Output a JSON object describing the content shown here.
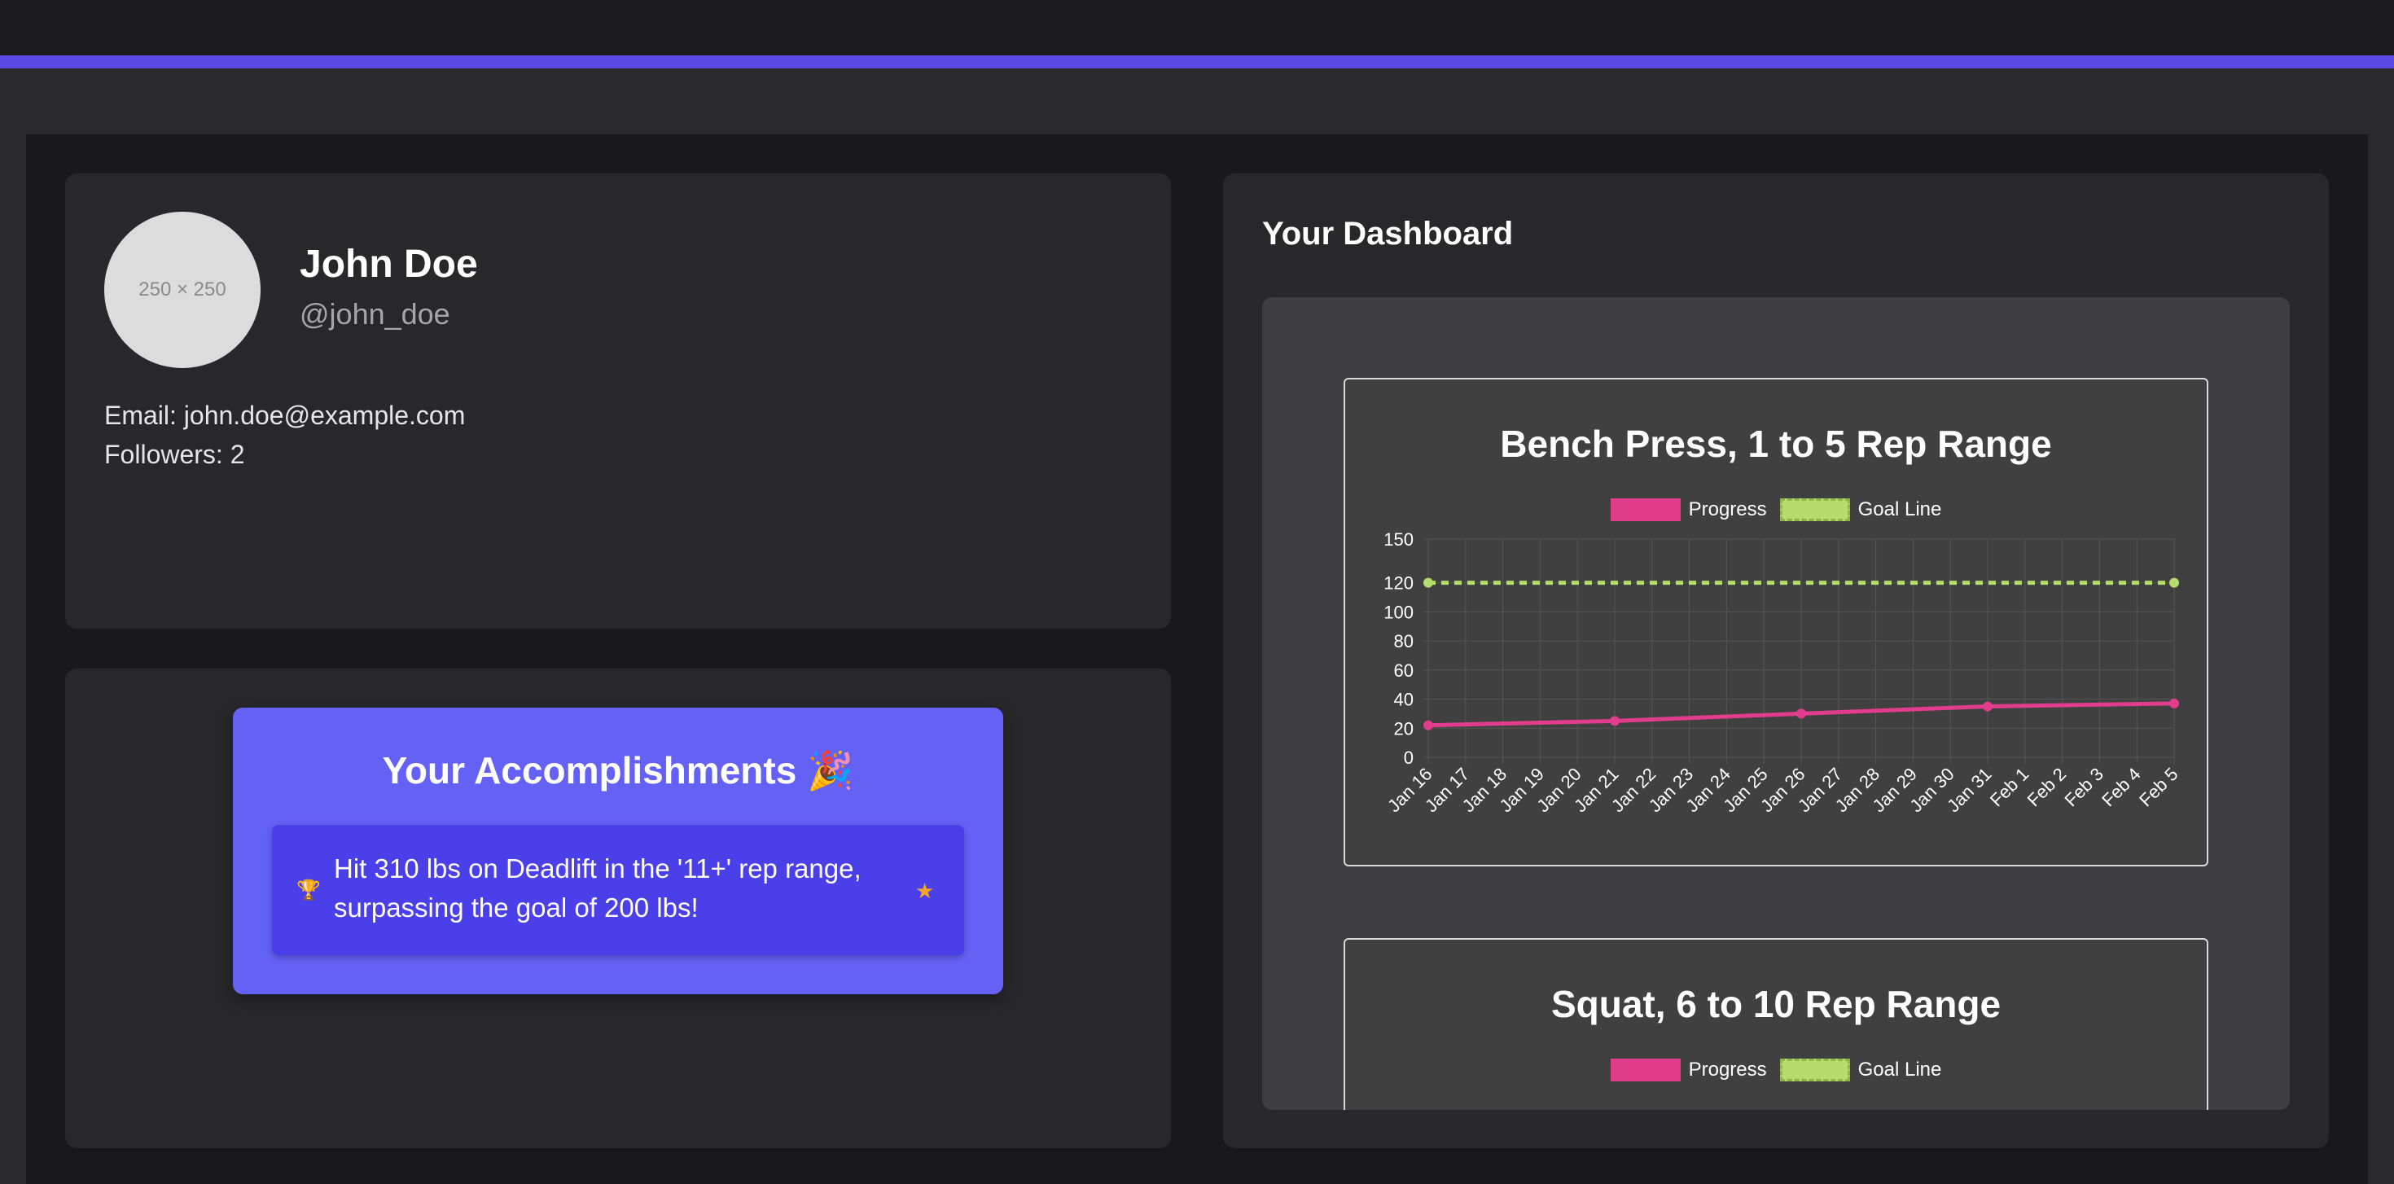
{
  "profile": {
    "avatar_text": "250 × 250",
    "name": "John Doe",
    "handle": "@john_doe",
    "email_line": "Email: john.doe@example.com",
    "followers_line": "Followers: 2"
  },
  "accomplishments": {
    "title": "Your Accomplishments 🎉",
    "items": [
      {
        "icon": "trophy-icon",
        "text": "Hit 310 lbs on Deadlift in the '11+' rep range, surpassing the goal of 200 lbs!",
        "badge_icon": "star-icon"
      }
    ]
  },
  "dashboard": {
    "title": "Your Dashboard"
  },
  "colors": {
    "accent": "#5a4ae3",
    "progress": "#e23c8c",
    "goal": "#b5dc6d",
    "accomplishment_box": "#6461f5",
    "accomplishment_item": "#4a3fe8"
  },
  "chart_data": [
    {
      "type": "line",
      "title": "Bench Press, 1 to 5 Rep Range",
      "legend_position": "top-center",
      "grid": true,
      "categories": [
        "Jan 16",
        "Jan 17",
        "Jan 18",
        "Jan 19",
        "Jan 20",
        "Jan 21",
        "Jan 22",
        "Jan 23",
        "Jan 24",
        "Jan 25",
        "Jan 26",
        "Jan 27",
        "Jan 28",
        "Jan 29",
        "Jan 30",
        "Jan 31",
        "Feb 1",
        "Feb 2",
        "Feb 3",
        "Feb 4",
        "Feb 5"
      ],
      "yticks": [
        0,
        20,
        40,
        60,
        80,
        100,
        120,
        150
      ],
      "ylim": [
        0,
        150
      ],
      "series": [
        {
          "name": "Progress",
          "color": "#e23c8c",
          "points": [
            {
              "x": "Jan 16",
              "y": 22
            },
            {
              "x": "Jan 21",
              "y": 25
            },
            {
              "x": "Jan 26",
              "y": 30
            },
            {
              "x": "Jan 31",
              "y": 35
            },
            {
              "x": "Feb 5",
              "y": 37
            }
          ]
        },
        {
          "name": "Goal Line",
          "color": "#b5dc6d",
          "dashed": true,
          "points": [
            {
              "x": "Jan 16",
              "y": 120
            },
            {
              "x": "Feb 5",
              "y": 120
            }
          ]
        }
      ]
    },
    {
      "type": "line",
      "title": "Squat, 6 to 10 Rep Range",
      "legend_position": "top-center",
      "series": [
        {
          "name": "Progress",
          "color": "#e23c8c"
        },
        {
          "name": "Goal Line",
          "color": "#b5dc6d",
          "dashed": true
        }
      ]
    }
  ]
}
